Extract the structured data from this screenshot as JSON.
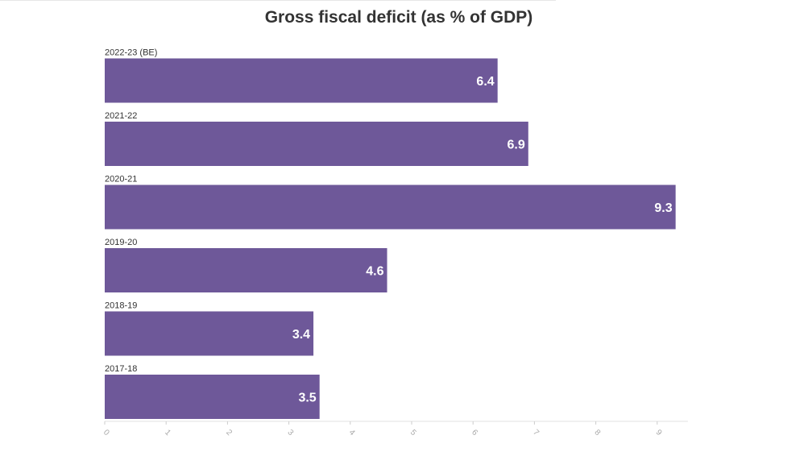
{
  "chart_data": {
    "type": "bar",
    "orientation": "horizontal",
    "title": "Gross fiscal deficit (as % of GDP)",
    "categories": [
      "2022-23 (BE)",
      "2021-22",
      "2020-21",
      "2019-20",
      "2018-19",
      "2017-18"
    ],
    "values": [
      6.4,
      6.9,
      9.3,
      4.6,
      3.4,
      3.5
    ],
    "value_labels": [
      "6.4",
      "6.9",
      "9.3",
      "4.6",
      "3.4",
      "3.5"
    ],
    "xlabel": "",
    "ylabel": "",
    "xlim": [
      0,
      9.5
    ],
    "x_ticks": [
      0,
      1,
      2,
      3,
      4,
      5,
      6,
      7,
      8,
      9
    ],
    "x_tick_labels": [
      "0",
      "1",
      "2",
      "3",
      "4",
      "5",
      "6",
      "7",
      "8",
      "9"
    ],
    "bar_color": "#6e5899",
    "grid": false,
    "legend": "none"
  }
}
